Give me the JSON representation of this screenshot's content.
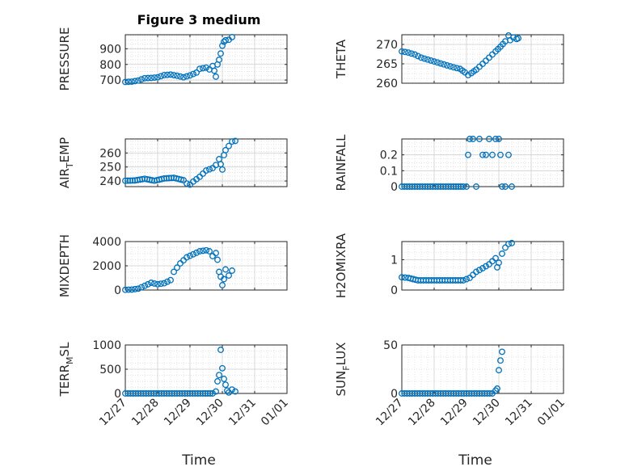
{
  "figure": {
    "title": "Figure 3 medium",
    "xlabel_left": "Time",
    "xlabel_right": "Time"
  },
  "style": {
    "marker_color": "#0072bd",
    "grid_color": "#d9d9d9",
    "axis_color": "#262626"
  },
  "chart_data": [
    {
      "type": "scatter",
      "ylabel": "PRESSURE",
      "xlim": [
        0,
        5
      ],
      "xticklabels": [
        "12/27",
        "12/28",
        "12/29",
        "12/30",
        "12/31",
        "01/01"
      ],
      "ylim": [
        680,
        990
      ],
      "yticks": [
        700,
        800,
        900
      ],
      "yticklabels": [
        "700",
        "800",
        "900"
      ],
      "points": [
        [
          0,
          688
        ],
        [
          0.2,
          690
        ],
        [
          0.4,
          697
        ],
        [
          0.6,
          712
        ],
        [
          0.8,
          714
        ],
        [
          1,
          718
        ],
        [
          1.2,
          732
        ],
        [
          1.4,
          735
        ],
        [
          1.6,
          728
        ],
        [
          1.8,
          718
        ],
        [
          2,
          730
        ],
        [
          2.2,
          748
        ],
        [
          2.3,
          772
        ],
        [
          2.5,
          780
        ],
        [
          2.6,
          768
        ],
        [
          2.7,
          790
        ],
        [
          2.75,
          760
        ],
        [
          2.8,
          722
        ],
        [
          2.85,
          800
        ],
        [
          2.9,
          830
        ],
        [
          2.95,
          870
        ],
        [
          3,
          920
        ],
        [
          3.05,
          945
        ],
        [
          3.1,
          955
        ],
        [
          3.2,
          958
        ],
        [
          3.3,
          975
        ]
      ]
    },
    {
      "type": "scatter",
      "ylabel": "THETA",
      "xlim": [
        0,
        5
      ],
      "xticklabels": [
        "12/27",
        "12/28",
        "12/29",
        "12/30",
        "12/31",
        "01/01"
      ],
      "ylim": [
        260,
        272.5
      ],
      "yticks": [
        260,
        265,
        270
      ],
      "yticklabels": [
        "260",
        "265",
        "270"
      ],
      "points": [
        [
          0,
          268.2
        ],
        [
          0.2,
          267.9
        ],
        [
          0.4,
          267.4
        ],
        [
          0.6,
          266.6
        ],
        [
          0.8,
          266.1
        ],
        [
          1,
          265.6
        ],
        [
          1.2,
          265.1
        ],
        [
          1.4,
          264.6
        ],
        [
          1.6,
          264.1
        ],
        [
          1.8,
          263.7
        ],
        [
          1.95,
          262.8
        ],
        [
          2.05,
          262.1
        ],
        [
          2.15,
          262.6
        ],
        [
          2.3,
          263.5
        ],
        [
          2.5,
          265
        ],
        [
          2.7,
          266.6
        ],
        [
          2.9,
          268.2
        ],
        [
          3.05,
          269.4
        ],
        [
          3.2,
          270.8
        ],
        [
          3.3,
          272.3
        ],
        [
          3.35,
          271.1
        ],
        [
          3.45,
          271.8
        ],
        [
          3.55,
          271.4
        ],
        [
          3.6,
          271.6
        ]
      ]
    },
    {
      "type": "scatter",
      "ylabel_parts": [
        "AIR",
        "T",
        "EMP"
      ],
      "xlim": [
        0,
        5
      ],
      "xticklabels": [
        "12/27",
        "12/28",
        "12/29",
        "12/30",
        "12/31",
        "01/01"
      ],
      "ylim": [
        236,
        270
      ],
      "yticks": [
        240,
        250,
        260
      ],
      "yticklabels": [
        "240",
        "250",
        "260"
      ],
      "points": [
        [
          0,
          240.2
        ],
        [
          0.3,
          240.4
        ],
        [
          0.6,
          241.6
        ],
        [
          0.9,
          240.2
        ],
        [
          1.2,
          241.8
        ],
        [
          1.5,
          242.3
        ],
        [
          1.8,
          240.6
        ],
        [
          1.9,
          238.2
        ],
        [
          2,
          237.4
        ],
        [
          2.1,
          239.6
        ],
        [
          2.3,
          243
        ],
        [
          2.5,
          247.5
        ],
        [
          2.7,
          249.2
        ],
        [
          2.8,
          251.4
        ],
        [
          2.9,
          255.6
        ],
        [
          2.95,
          252
        ],
        [
          3,
          248.2
        ],
        [
          3.05,
          258.5
        ],
        [
          3.1,
          262
        ],
        [
          3.2,
          265
        ],
        [
          3.3,
          268.2
        ],
        [
          3.4,
          268.6
        ]
      ]
    },
    {
      "type": "scatter",
      "ylabel": "RAINFALL",
      "xlim": [
        0,
        5
      ],
      "xticklabels": [
        "12/27",
        "12/28",
        "12/29",
        "12/30",
        "12/31",
        "01/01"
      ],
      "ylim": [
        0,
        0.3
      ],
      "yticks": [
        0,
        0.1,
        0.2
      ],
      "yticklabels": [
        "0",
        "0.1",
        "0.2"
      ],
      "points": [
        [
          0,
          0
        ],
        [
          0.4,
          0
        ],
        [
          0.8,
          0
        ],
        [
          1.2,
          0
        ],
        [
          1.6,
          0
        ],
        [
          1.9,
          0
        ],
        [
          2,
          0
        ],
        [
          2.05,
          0.2
        ],
        [
          2.1,
          0.3
        ],
        [
          2.2,
          0.3
        ],
        [
          2.3,
          0
        ],
        [
          2.4,
          0.3
        ],
        [
          2.5,
          0.2
        ],
        [
          2.6,
          0.2
        ],
        [
          2.7,
          0.3
        ],
        [
          2.8,
          0.2
        ],
        [
          2.9,
          0.3
        ],
        [
          3,
          0.3
        ],
        [
          3.05,
          0.2
        ],
        [
          3.1,
          0
        ],
        [
          3.2,
          0
        ],
        [
          3.3,
          0.2
        ],
        [
          3.4,
          0
        ]
      ]
    },
    {
      "type": "scatter",
      "ylabel": "MIXDEPTH",
      "xlim": [
        0,
        5
      ],
      "xticklabels": [
        "12/27",
        "12/28",
        "12/29",
        "12/30",
        "12/31",
        "01/01"
      ],
      "ylim": [
        0,
        4000
      ],
      "yticks": [
        0,
        2000,
        4000
      ],
      "yticklabels": [
        "0",
        "2000",
        "4000"
      ],
      "points": [
        [
          0,
          20
        ],
        [
          0.2,
          40
        ],
        [
          0.4,
          110
        ],
        [
          0.6,
          350
        ],
        [
          0.8,
          600
        ],
        [
          1,
          480
        ],
        [
          1.2,
          560
        ],
        [
          1.4,
          820
        ],
        [
          1.5,
          1500
        ],
        [
          1.7,
          2200
        ],
        [
          1.9,
          2700
        ],
        [
          2.1,
          2950
        ],
        [
          2.3,
          3200
        ],
        [
          2.5,
          3280
        ],
        [
          2.6,
          3200
        ],
        [
          2.7,
          2800
        ],
        [
          2.8,
          3050
        ],
        [
          2.85,
          2500
        ],
        [
          2.9,
          1500
        ],
        [
          2.95,
          1100
        ],
        [
          3,
          400
        ],
        [
          3.05,
          900
        ],
        [
          3.1,
          1700
        ],
        [
          3.2,
          1200
        ],
        [
          3.3,
          1600
        ]
      ]
    },
    {
      "type": "scatter",
      "ylabel": "H2OMIXRA",
      "xlim": [
        0,
        5
      ],
      "xticklabels": [
        "12/27",
        "12/28",
        "12/29",
        "12/30",
        "12/31",
        "01/01"
      ],
      "ylim": [
        0,
        1.6
      ],
      "yticks": [
        0,
        1
      ],
      "yticklabels": [
        "0",
        "1"
      ],
      "points": [
        [
          0,
          0.42
        ],
        [
          0.2,
          0.4
        ],
        [
          0.5,
          0.32
        ],
        [
          1,
          0.32
        ],
        [
          1.5,
          0.32
        ],
        [
          1.9,
          0.32
        ],
        [
          2.1,
          0.4
        ],
        [
          2.3,
          0.6
        ],
        [
          2.5,
          0.72
        ],
        [
          2.7,
          0.85
        ],
        [
          2.9,
          1.05
        ],
        [
          2.95,
          0.75
        ],
        [
          3,
          0.9
        ],
        [
          3.1,
          1.2
        ],
        [
          3.2,
          1.4
        ],
        [
          3.3,
          1.52
        ],
        [
          3.4,
          1.55
        ]
      ]
    },
    {
      "type": "scatter",
      "ylabel_parts": [
        "TERR",
        "M",
        "SL"
      ],
      "xlim": [
        0,
        5
      ],
      "xticklabels": [
        "12/27",
        "12/28",
        "12/29",
        "12/30",
        "12/31",
        "01/01"
      ],
      "ylim": [
        0,
        1000
      ],
      "yticks": [
        0,
        500,
        1000
      ],
      "yticklabels": [
        "0",
        "500",
        "1000"
      ],
      "points": [
        [
          0,
          0
        ],
        [
          0.4,
          0
        ],
        [
          0.8,
          0
        ],
        [
          1.2,
          0
        ],
        [
          1.6,
          0
        ],
        [
          2,
          0
        ],
        [
          2.4,
          0
        ],
        [
          2.7,
          0
        ],
        [
          2.8,
          40
        ],
        [
          2.85,
          250
        ],
        [
          2.9,
          380
        ],
        [
          2.95,
          900
        ],
        [
          3,
          520
        ],
        [
          3.05,
          300
        ],
        [
          3.1,
          180
        ],
        [
          3.15,
          60
        ],
        [
          3.2,
          20
        ],
        [
          3.3,
          80
        ],
        [
          3.4,
          40
        ]
      ]
    },
    {
      "type": "scatter",
      "ylabel_parts": [
        "SUN",
        "F",
        "LUX"
      ],
      "xlim": [
        0,
        5
      ],
      "xticklabels": [
        "12/27",
        "12/28",
        "12/29",
        "12/30",
        "12/31",
        "01/01"
      ],
      "ylim": [
        0,
        50
      ],
      "yticks": [
        0,
        50
      ],
      "yticklabels": [
        "0",
        "50"
      ],
      "points": [
        [
          0,
          0
        ],
        [
          0.4,
          0
        ],
        [
          0.8,
          0
        ],
        [
          1.2,
          0
        ],
        [
          1.6,
          0
        ],
        [
          2,
          0
        ],
        [
          2.4,
          0
        ],
        [
          2.8,
          0
        ],
        [
          2.9,
          3
        ],
        [
          2.95,
          5
        ],
        [
          3,
          24
        ],
        [
          3.05,
          34
        ],
        [
          3.1,
          43
        ]
      ]
    }
  ]
}
